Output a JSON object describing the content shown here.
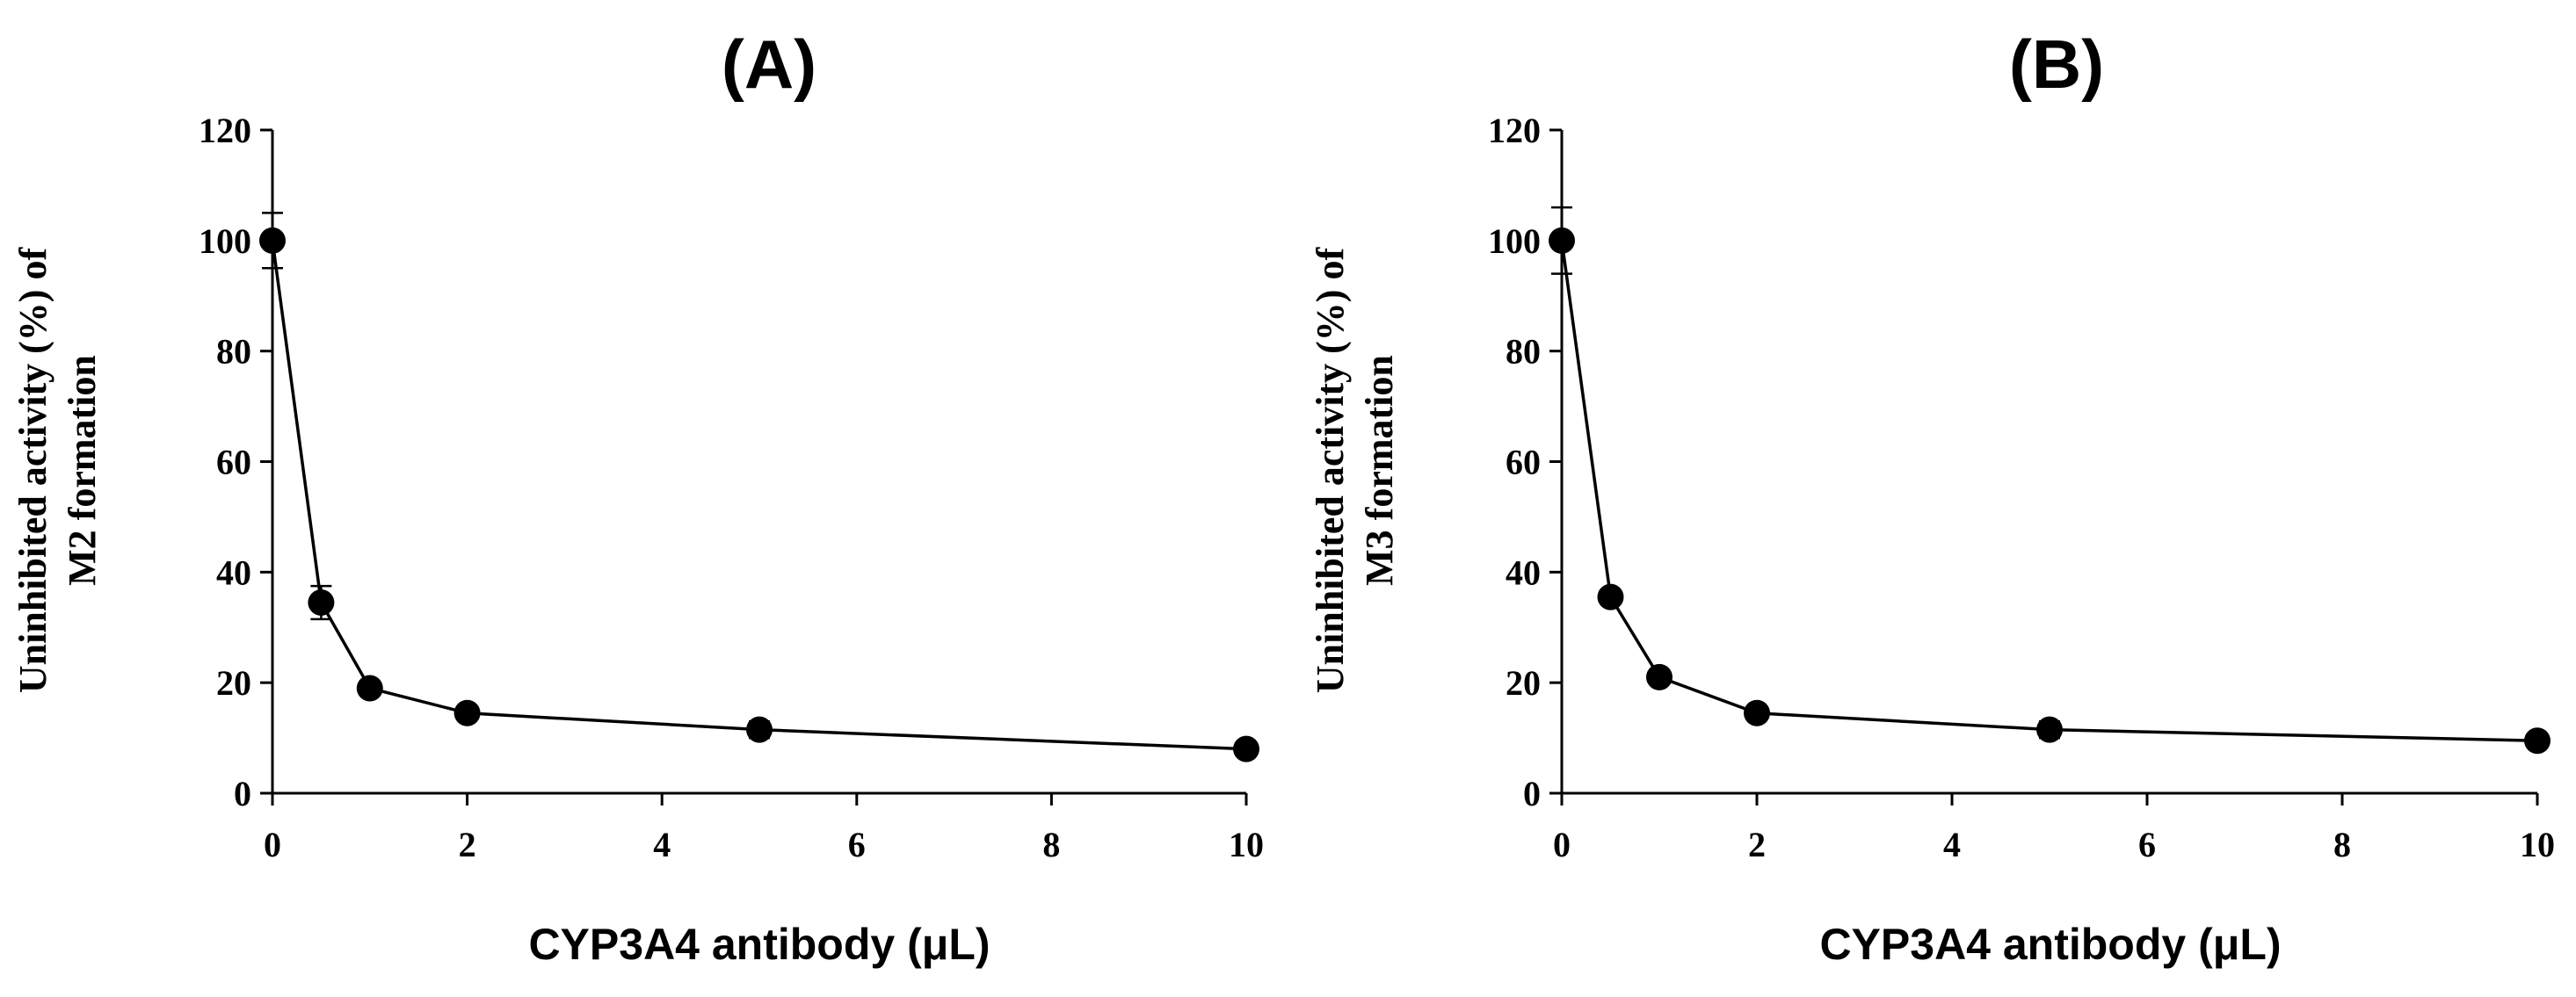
{
  "chart_data": [
    {
      "type": "line",
      "title": "(A)",
      "xlabel": "CYP3A4 antibody (μL)",
      "ylabel_lines": [
        "Uninhibited activity (%) of",
        "M2 formation"
      ],
      "xlim": [
        0,
        10
      ],
      "ylim": [
        0,
        120
      ],
      "xticks": [
        "0",
        "2",
        "4",
        "6",
        "8",
        "10"
      ],
      "yticks": [
        "0",
        "20",
        "40",
        "60",
        "80",
        "100",
        "120"
      ],
      "x": [
        0,
        0.5,
        1,
        2,
        5,
        10
      ],
      "y": [
        100,
        34.5,
        19,
        14.5,
        11.5,
        8
      ],
      "err": [
        5,
        3,
        1,
        1,
        1.5,
        0.5
      ],
      "series_color": "#000000"
    },
    {
      "type": "line",
      "title": "(B)",
      "xlabel": "CYP3A4 antibody (μL)",
      "ylabel_lines": [
        "Uninhibited activity (%) of",
        "M3 formation"
      ],
      "xlim": [
        0,
        10
      ],
      "ylim": [
        0,
        120
      ],
      "xticks": [
        "0",
        "2",
        "4",
        "6",
        "8",
        "10"
      ],
      "yticks": [
        "0",
        "20",
        "40",
        "60",
        "80",
        "100",
        "120"
      ],
      "x": [
        0,
        0.5,
        1,
        2,
        5,
        10
      ],
      "y": [
        100,
        35.5,
        21,
        14.5,
        11.5,
        9.5
      ],
      "err": [
        6,
        1,
        1,
        1,
        1.5,
        0.5
      ],
      "series_color": "#000000"
    }
  ]
}
